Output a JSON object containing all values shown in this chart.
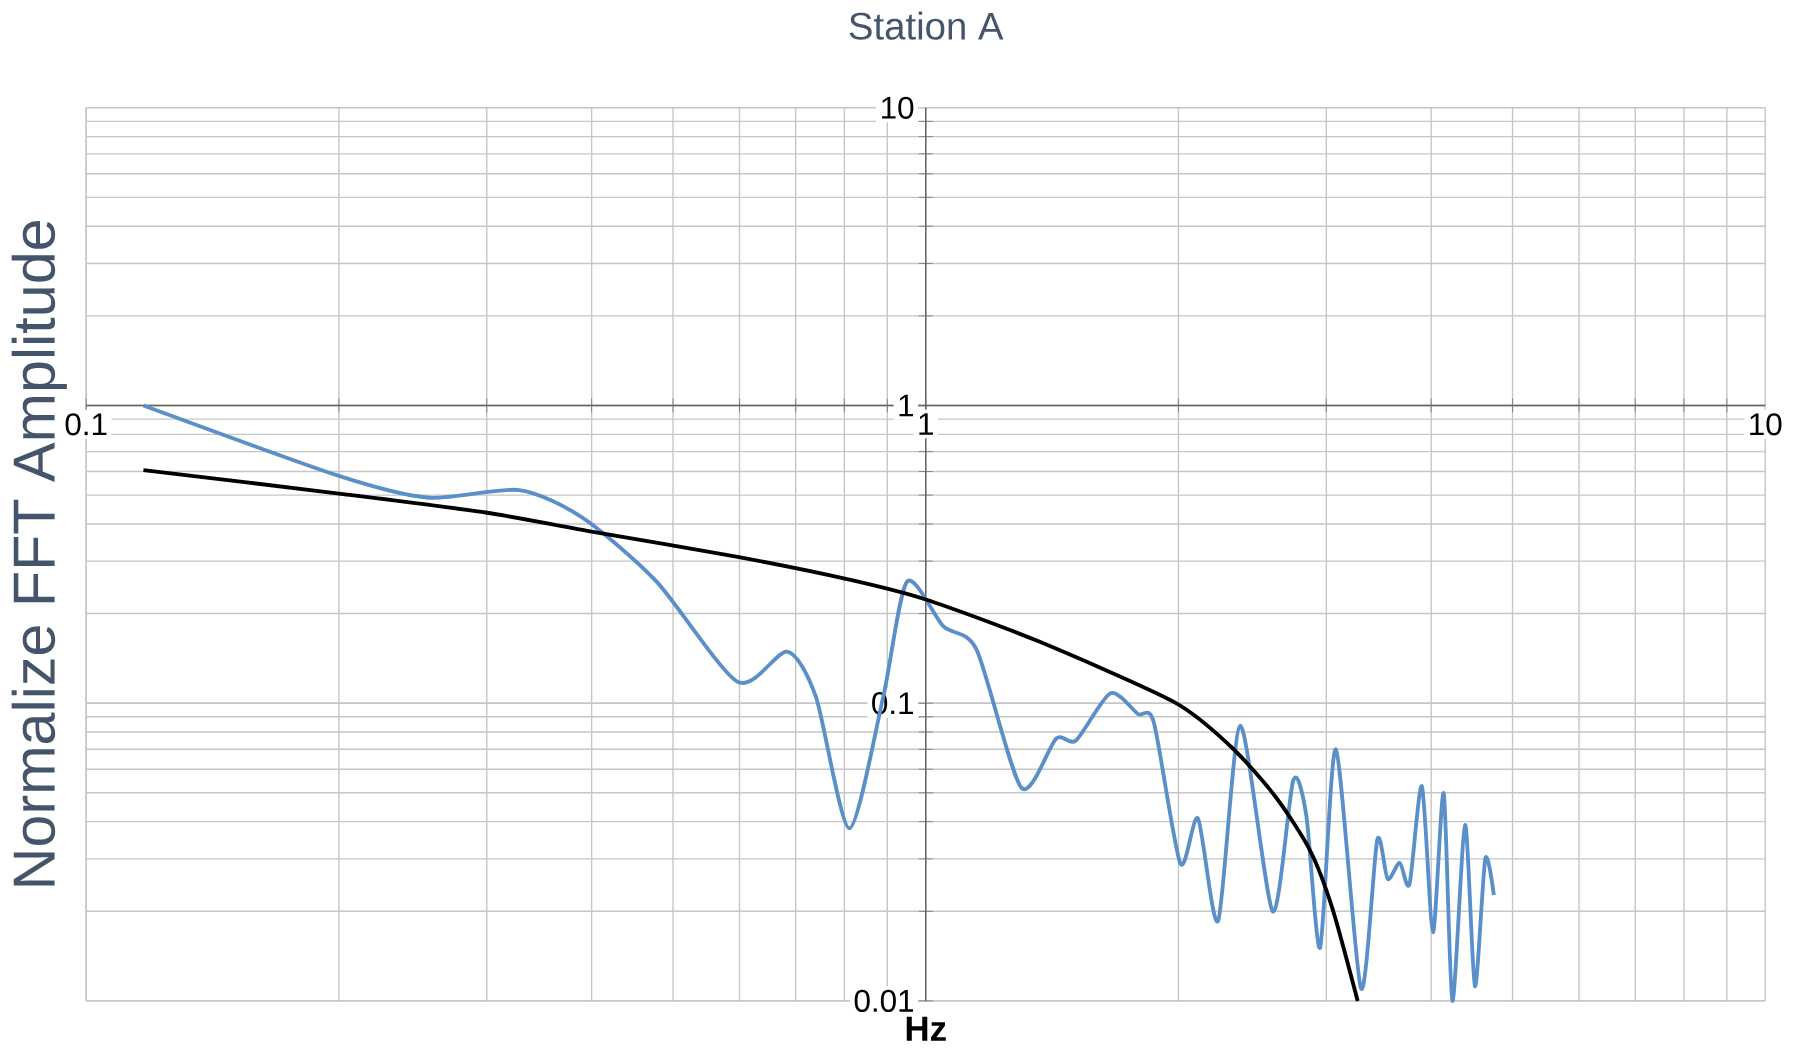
{
  "chart_data": {
    "type": "line",
    "title": "Station A",
    "xlabel": "Hz",
    "ylabel": "Normalize FFT Amplitude",
    "log": "xy",
    "grid": true,
    "xlim": [
      0.1,
      10
    ],
    "ylim": [
      0.01,
      10
    ],
    "xticks": [
      0.1,
      1,
      10
    ],
    "yticks": [
      0.01,
      0.1,
      1,
      10
    ],
    "series": [
      {
        "color": "#5b8fc9",
        "x": [
          0.117,
          0.2,
          0.256,
          0.328,
          0.39,
          0.478,
          0.597,
          0.684,
          0.74,
          0.811,
          0.89,
          0.95,
          1.05,
          1.15,
          1.3,
          1.43,
          1.51,
          1.66,
          1.79,
          1.87,
          2.01,
          2.11,
          2.23,
          2.37,
          2.59,
          2.74,
          2.84,
          2.95,
          3.08,
          3.3,
          3.45,
          3.55,
          3.67,
          3.77,
          3.9,
          4.02,
          4.14,
          4.24,
          4.39,
          4.51,
          4.64,
          4.75
        ],
        "values": [
          1.0,
          0.58,
          0.49,
          0.52,
          0.42,
          0.256,
          0.118,
          0.149,
          0.105,
          0.038,
          0.105,
          0.256,
          0.181,
          0.151,
          0.052,
          0.076,
          0.075,
          0.108,
          0.092,
          0.086,
          0.029,
          0.041,
          0.0186,
          0.084,
          0.02,
          0.055,
          0.042,
          0.0151,
          0.07,
          0.011,
          0.0347,
          0.0257,
          0.0291,
          0.0247,
          0.0526,
          0.017,
          0.0498,
          0.01,
          0.039,
          0.0112,
          0.03,
          0.0227
        ]
      },
      {
        "color": "#000000",
        "x": [
          0.117,
          0.2,
          0.299,
          0.4,
          0.597,
          0.811,
          1.0,
          1.358,
          1.975,
          2.31,
          2.61,
          2.87,
          3.05,
          3.27
        ],
        "values": [
          0.607,
          0.506,
          0.437,
          0.377,
          0.31,
          0.26,
          0.223,
          0.162,
          0.101,
          0.0714,
          0.0485,
          0.032,
          0.0205,
          0.01
        ]
      }
    ]
  }
}
